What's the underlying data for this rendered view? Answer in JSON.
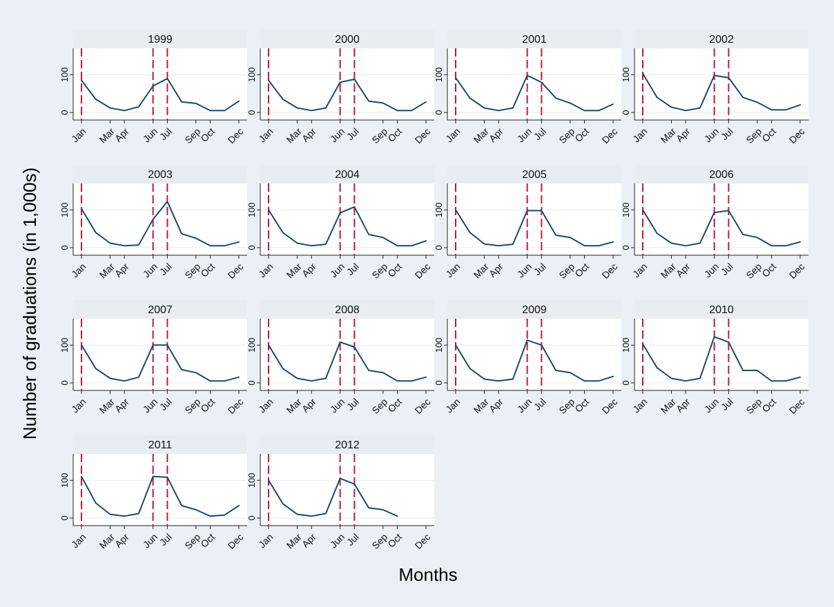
{
  "chart_data": {
    "type": "line",
    "xlabel": "Months",
    "ylabel": "Number of graduations (in 1,000s)",
    "ylim": [
      -20,
      170
    ],
    "y_ticks": [
      0,
      100
    ],
    "x_tick_labels": [
      "Jan",
      "Mar",
      "Apr",
      "Jun",
      "Jul",
      "Sep",
      "Oct",
      "Dec"
    ],
    "x_tick_months": [
      1,
      3,
      4,
      6,
      7,
      9,
      10,
      12
    ],
    "reference_lines_months": [
      1,
      6,
      7
    ],
    "grid": "horizontal",
    "layout": "facets 4 columns",
    "colors": {
      "background": "#eaf0f5",
      "panel": "#ffffff",
      "strip": "#e8edf2",
      "line": "#1b4a6b",
      "reference": "#c0183c",
      "grid": "#e6ebef"
    },
    "months": [
      1,
      2,
      3,
      4,
      5,
      6,
      7,
      8,
      9,
      10,
      11,
      12
    ],
    "panels": [
      {
        "year": "1999",
        "values": [
          85,
          35,
          12,
          5,
          15,
          70,
          90,
          28,
          24,
          5,
          5,
          30
        ]
      },
      {
        "year": "2000",
        "values": [
          85,
          35,
          12,
          5,
          12,
          80,
          88,
          30,
          25,
          5,
          5,
          28
        ]
      },
      {
        "year": "2001",
        "values": [
          92,
          38,
          12,
          5,
          12,
          98,
          80,
          38,
          25,
          5,
          5,
          22
        ]
      },
      {
        "year": "2002",
        "values": [
          103,
          40,
          14,
          5,
          12,
          98,
          92,
          40,
          27,
          7,
          7,
          20
        ]
      },
      {
        "year": "2003",
        "values": [
          103,
          40,
          12,
          5,
          7,
          75,
          122,
          37,
          25,
          5,
          5,
          15
        ]
      },
      {
        "year": "2004",
        "values": [
          100,
          40,
          12,
          5,
          9,
          92,
          108,
          35,
          27,
          5,
          5,
          18
        ]
      },
      {
        "year": "2005",
        "values": [
          100,
          40,
          10,
          5,
          9,
          98,
          98,
          33,
          27,
          5,
          5,
          15
        ]
      },
      {
        "year": "2006",
        "values": [
          100,
          38,
          12,
          5,
          12,
          93,
          98,
          35,
          27,
          5,
          5,
          15
        ]
      },
      {
        "year": "2007",
        "values": [
          100,
          38,
          12,
          5,
          15,
          100,
          100,
          35,
          27,
          5,
          5,
          15
        ]
      },
      {
        "year": "2008",
        "values": [
          100,
          38,
          12,
          5,
          12,
          108,
          95,
          33,
          27,
          5,
          5,
          15
        ]
      },
      {
        "year": "2009",
        "values": [
          100,
          38,
          10,
          5,
          10,
          113,
          100,
          33,
          27,
          5,
          5,
          17
        ]
      },
      {
        "year": "2010",
        "values": [
          103,
          40,
          12,
          5,
          12,
          122,
          108,
          33,
          33,
          5,
          5,
          15
        ]
      },
      {
        "year": "2011",
        "values": [
          110,
          40,
          10,
          5,
          12,
          110,
          108,
          33,
          22,
          5,
          8,
          33
        ]
      },
      {
        "year": "2012",
        "values": [
          100,
          38,
          10,
          5,
          12,
          105,
          90,
          27,
          22,
          5,
          null,
          null
        ]
      }
    ]
  }
}
